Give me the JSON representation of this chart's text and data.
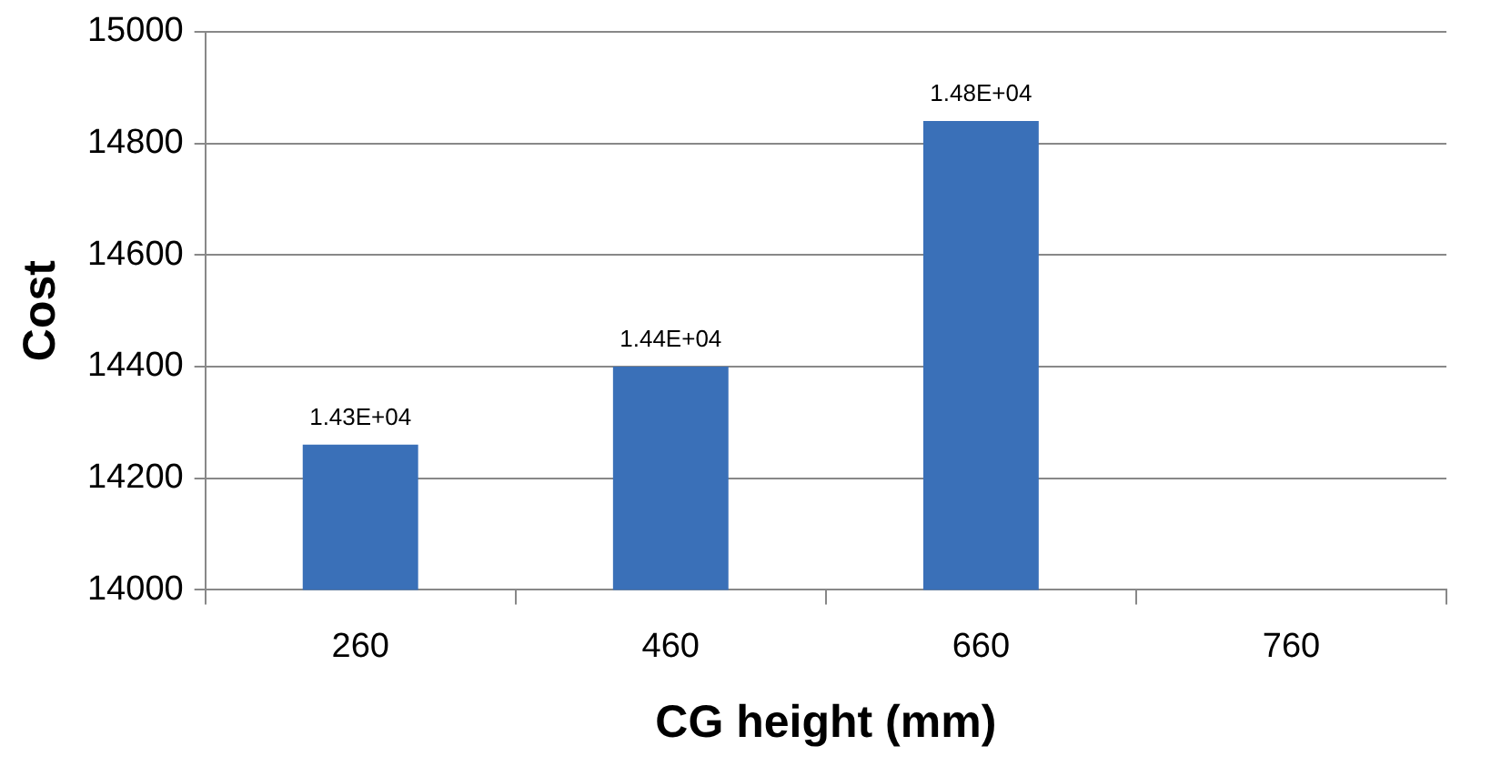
{
  "chart_data": {
    "type": "bar",
    "xlabel": "CG height (mm)",
    "ylabel": "Cost",
    "categories": [
      "260",
      "460",
      "660",
      "760"
    ],
    "values": [
      14260,
      14400,
      14840,
      null
    ],
    "value_labels": [
      "1.43E+04",
      "1.44E+04",
      "1.48E+04",
      null
    ],
    "color": "#3a70b8",
    "ylim": [
      14000,
      15000
    ],
    "yticks": [
      14000,
      14200,
      14400,
      14600,
      14800,
      15000
    ],
    "grid": "y",
    "legend": false
  }
}
